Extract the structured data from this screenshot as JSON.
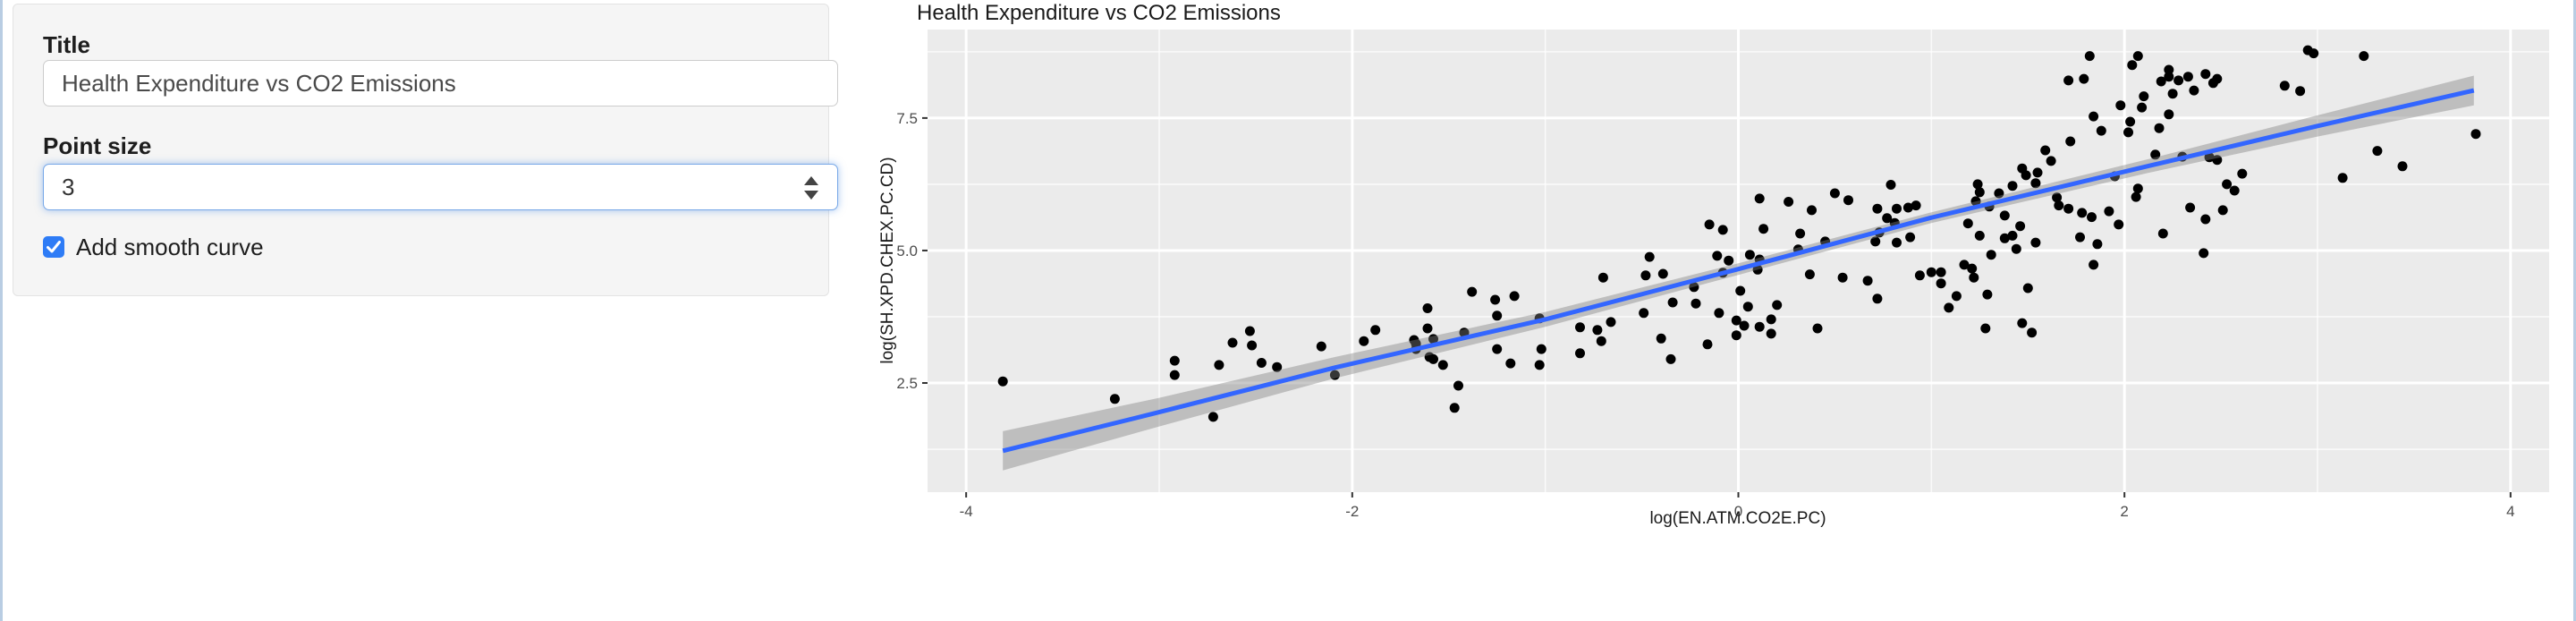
{
  "sidebar": {
    "title_label": "Title",
    "title_value": "Health Expenditure vs CO2 Emissions",
    "point_size_label": "Point size",
    "point_size_value": "3",
    "smooth_checkbox_label": "Add smooth curve",
    "smooth_checkbox_checked": true,
    "checkbox_color": "#2e7cf6"
  },
  "chart_data": {
    "type": "scatter",
    "title": "Health Expenditure vs CO2 Emissions",
    "xlabel": "log(EN.ATM.CO2E.PC)",
    "ylabel": "log(SH.XPD.CHEX.PC.CD)",
    "xlim": [
      -4.2,
      4.2
    ],
    "ylim": [
      0.44,
      9.17
    ],
    "x_major_ticks": [
      -4,
      -2,
      0,
      2,
      4
    ],
    "x_tick_labels": [
      "-4",
      "-2",
      "0",
      "2",
      "4"
    ],
    "x_minor_ticks": [
      -3,
      -1,
      1,
      3
    ],
    "y_major_ticks": [
      2.5,
      5.0,
      7.5
    ],
    "y_tick_labels": [
      "2.5",
      "5.0",
      "7.5"
    ],
    "y_minor_ticks": [
      1.25,
      3.75,
      6.25,
      8.75
    ],
    "grid": true,
    "legend": "none",
    "colors": {
      "panel_background": "#EBEBEB",
      "gridline": "#FFFFFF",
      "point": "#000000",
      "smooth_line": "#3366FF",
      "ribbon": "rgba(128,128,128,0.42)",
      "tick_label": "#4d4d4d",
      "axis_title": "#1a1a1a",
      "tick_mark": "#333333"
    },
    "points": [
      [
        -3.81,
        2.53
      ],
      [
        -3.23,
        2.2
      ],
      [
        -2.92,
        2.92
      ],
      [
        -2.92,
        2.65
      ],
      [
        -2.69,
        2.84
      ],
      [
        -2.72,
        1.86
      ],
      [
        -2.62,
        3.26
      ],
      [
        -2.53,
        3.48
      ],
      [
        -2.52,
        3.21
      ],
      [
        -2.47,
        2.88
      ],
      [
        -2.39,
        2.8
      ],
      [
        -2.16,
        3.19
      ],
      [
        -2.09,
        2.65
      ],
      [
        -1.94,
        3.29
      ],
      [
        -1.88,
        3.5
      ],
      [
        -1.67,
        3.24
      ],
      [
        -1.68,
        3.31
      ],
      [
        -1.67,
        3.14
      ],
      [
        -1.61,
        3.91
      ],
      [
        -1.61,
        3.53
      ],
      [
        -1.58,
        3.33
      ],
      [
        -1.6,
        2.99
      ],
      [
        -1.58,
        2.95
      ],
      [
        -1.53,
        2.84
      ],
      [
        -1.45,
        2.45
      ],
      [
        -1.47,
        2.03
      ],
      [
        -1.38,
        4.22
      ],
      [
        -1.42,
        3.45
      ],
      [
        -1.26,
        4.07
      ],
      [
        -1.16,
        4.14
      ],
      [
        -1.25,
        3.77
      ],
      [
        -1.25,
        3.14
      ],
      [
        -1.18,
        2.87
      ],
      [
        -1.03,
        3.72
      ],
      [
        -1.02,
        3.14
      ],
      [
        -1.03,
        2.84
      ],
      [
        -0.82,
        3.55
      ],
      [
        -0.82,
        3.06
      ],
      [
        -0.7,
        4.49
      ],
      [
        -0.73,
        3.5
      ],
      [
        -0.71,
        3.29
      ],
      [
        -0.66,
        3.65
      ],
      [
        -0.48,
        4.53
      ],
      [
        -0.49,
        3.82
      ],
      [
        -0.39,
        4.56
      ],
      [
        -0.4,
        3.34
      ],
      [
        -0.35,
        2.95
      ],
      [
        -0.34,
        4.02
      ],
      [
        -0.23,
        4.31
      ],
      [
        -0.22,
        4.0
      ],
      [
        -0.16,
        3.23
      ],
      [
        -0.1,
        3.82
      ],
      [
        -0.01,
        3.68
      ],
      [
        -0.01,
        3.4
      ],
      [
        -0.08,
        4.58
      ],
      [
        0.01,
        4.24
      ],
      [
        -0.46,
        4.88
      ],
      [
        -0.15,
        5.49
      ],
      [
        -0.08,
        5.39
      ],
      [
        -0.11,
        4.9
      ],
      [
        -0.05,
        4.81
      ],
      [
        0.11,
        5.98
      ],
      [
        0.26,
        5.92
      ],
      [
        0.13,
        5.41
      ],
      [
        0.32,
        5.32
      ],
      [
        0.31,
        5.02
      ],
      [
        0.06,
        4.92
      ],
      [
        0.11,
        4.83
      ],
      [
        0.45,
        5.17
      ],
      [
        0.5,
        6.08
      ],
      [
        0.57,
        5.95
      ],
      [
        0.38,
        5.76
      ],
      [
        0.79,
        6.24
      ],
      [
        0.72,
        5.79
      ],
      [
        0.77,
        5.61
      ],
      [
        0.82,
        5.79
      ],
      [
        0.88,
        5.81
      ],
      [
        0.92,
        5.85
      ],
      [
        0.81,
        5.52
      ],
      [
        0.73,
        5.34
      ],
      [
        0.71,
        5.17
      ],
      [
        0.82,
        5.15
      ],
      [
        0.89,
        5.25
      ],
      [
        1.19,
        5.51
      ],
      [
        1.24,
        6.25
      ],
      [
        1.25,
        6.1
      ],
      [
        1.23,
        5.93
      ],
      [
        1.25,
        5.28
      ],
      [
        1.31,
        4.92
      ],
      [
        1.3,
        5.83
      ],
      [
        1.35,
        6.08
      ],
      [
        1.42,
        6.22
      ],
      [
        1.47,
        6.55
      ],
      [
        1.49,
        6.42
      ],
      [
        1.55,
        6.47
      ],
      [
        1.54,
        6.27
      ],
      [
        1.59,
        6.89
      ],
      [
        1.62,
        6.69
      ],
      [
        1.38,
        5.66
      ],
      [
        1.38,
        5.23
      ],
      [
        1.42,
        5.28
      ],
      [
        1.46,
        5.46
      ],
      [
        1.44,
        5.03
      ],
      [
        1.54,
        5.15
      ],
      [
        1.65,
        6.0
      ],
      [
        1.66,
        5.85
      ],
      [
        1.71,
        5.79
      ],
      [
        1.72,
        7.06
      ],
      [
        1.71,
        8.21
      ],
      [
        1.79,
        8.24
      ],
      [
        1.82,
        8.67
      ],
      [
        1.84,
        7.53
      ],
      [
        1.88,
        7.26
      ],
      [
        1.78,
        5.71
      ],
      [
        1.83,
        5.63
      ],
      [
        1.77,
        5.25
      ],
      [
        1.86,
        5.12
      ],
      [
        1.92,
        5.74
      ],
      [
        1.97,
        5.49
      ],
      [
        1.98,
        7.74
      ],
      [
        2.03,
        7.43
      ],
      [
        2.02,
        7.23
      ],
      [
        2.04,
        8.5
      ],
      [
        2.07,
        8.67
      ],
      [
        2.1,
        7.91
      ],
      [
        2.09,
        7.7
      ],
      [
        2.07,
        6.17
      ],
      [
        2.06,
        6.01
      ],
      [
        1.95,
        6.4
      ],
      [
        2.95,
        8.78
      ],
      [
        2.98,
        8.72
      ],
      [
        3.24,
        8.67
      ],
      [
        2.23,
        8.41
      ],
      [
        2.19,
        8.19
      ],
      [
        2.23,
        8.28
      ],
      [
        2.28,
        8.21
      ],
      [
        2.33,
        8.28
      ],
      [
        2.36,
        8.02
      ],
      [
        2.42,
        8.33
      ],
      [
        2.46,
        8.16
      ],
      [
        2.48,
        8.24
      ],
      [
        2.25,
        7.96
      ],
      [
        2.23,
        7.57
      ],
      [
        2.18,
        7.31
      ],
      [
        2.83,
        8.11
      ],
      [
        2.91,
        8.01
      ],
      [
        2.16,
        6.81
      ],
      [
        2.3,
        6.77
      ],
      [
        2.44,
        6.76
      ],
      [
        2.48,
        6.71
      ],
      [
        2.61,
        6.45
      ],
      [
        2.53,
        6.25
      ],
      [
        2.57,
        6.13
      ],
      [
        2.34,
        5.81
      ],
      [
        2.42,
        5.59
      ],
      [
        2.51,
        5.76
      ],
      [
        2.2,
        5.32
      ],
      [
        2.41,
        4.95
      ],
      [
        3.13,
        6.37
      ],
      [
        3.31,
        6.88
      ],
      [
        3.44,
        6.59
      ],
      [
        3.82,
        7.2
      ],
      [
        0.1,
        4.64
      ],
      [
        0.37,
        4.55
      ],
      [
        0.54,
        4.49
      ],
      [
        0.67,
        4.43
      ],
      [
        0.72,
        4.09
      ],
      [
        0.94,
        4.53
      ],
      [
        1.0,
        4.59
      ],
      [
        1.05,
        4.59
      ],
      [
        1.05,
        4.38
      ],
      [
        1.13,
        4.14
      ],
      [
        1.09,
        3.92
      ],
      [
        1.17,
        4.73
      ],
      [
        1.21,
        4.66
      ],
      [
        1.22,
        4.49
      ],
      [
        1.29,
        4.17
      ],
      [
        1.28,
        3.53
      ],
      [
        1.47,
        3.63
      ],
      [
        1.52,
        3.45
      ],
      [
        1.5,
        4.29
      ],
      [
        1.84,
        4.73
      ],
      [
        0.05,
        3.94
      ],
      [
        0.2,
        3.97
      ],
      [
        0.03,
        3.58
      ],
      [
        0.11,
        3.56
      ],
      [
        0.17,
        3.7
      ],
      [
        0.17,
        3.43
      ],
      [
        0.41,
        3.53
      ]
    ],
    "point_radius_px": 5.5,
    "smooth": {
      "line": [
        [
          -3.81,
          1.22
        ],
        [
          -3.0,
          1.95
        ],
        [
          -2.09,
          2.79
        ],
        [
          -1.0,
          3.7
        ],
        [
          0.0,
          4.65
        ],
        [
          1.0,
          5.62
        ],
        [
          2.13,
          6.6
        ],
        [
          3.0,
          7.35
        ],
        [
          3.81,
          8.02
        ]
      ],
      "ribbon_halfwidth": [
        0.37,
        0.27,
        0.2,
        0.14,
        0.11,
        0.1,
        0.13,
        0.2,
        0.28
      ]
    }
  }
}
